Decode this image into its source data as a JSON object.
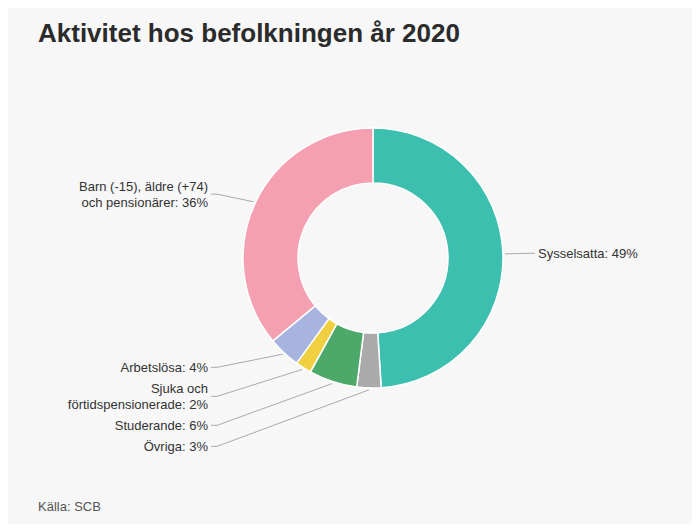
{
  "chart_data": {
    "type": "pie",
    "title": "Aktivitet hos befolkningen år 2020",
    "annotations": [
      "Källa: SCB"
    ],
    "values": [
      49,
      3,
      6,
      2,
      4,
      36
    ],
    "value_labels": [
      "Sysselsatta: 49%",
      "Övriga: 3%",
      "Studerande: 6%",
      "Sjuka och\nförtidspensionerade: 2%",
      "Arbetslösa: 4%",
      "Barn (-15), äldre (+74)\noch pensionärer: 36%"
    ],
    "colors": [
      "#3CBFAE",
      "#AAAAAA",
      "#4CA96A",
      "#F0D040",
      "#A8B4E0",
      "#F5A0B0"
    ]
  }
}
